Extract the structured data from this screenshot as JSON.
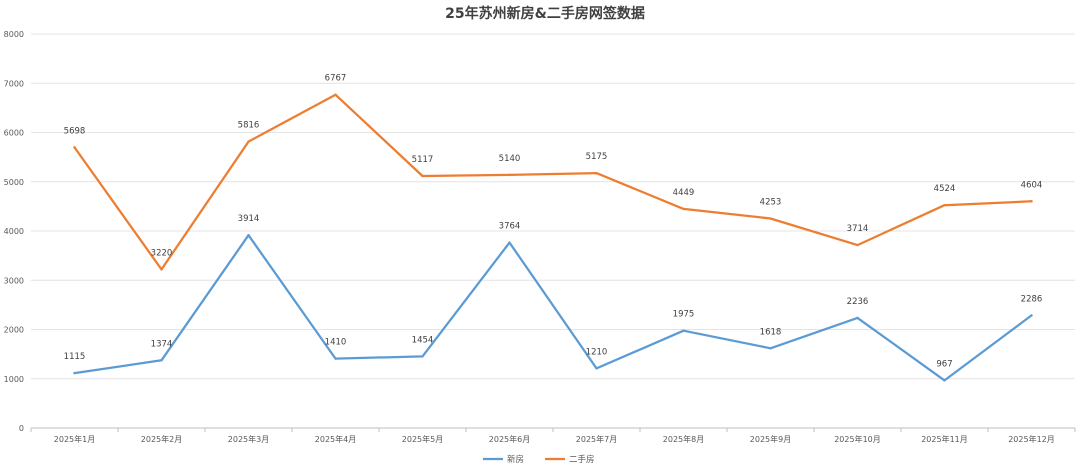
{
  "chart_data": {
    "type": "line",
    "title": "25年苏州新房&二手房网签数据",
    "xlabel": "",
    "ylabel": "",
    "categories": [
      "2025年1月",
      "2025年2月",
      "2025年3月",
      "2025年4月",
      "2025年5月",
      "2025年6月",
      "2025年7月",
      "2025年8月",
      "2025年9月",
      "2025年10月",
      "2025年11月",
      "2025年12月"
    ],
    "ylim": [
      0,
      8000
    ],
    "yticks": [
      0,
      1000,
      2000,
      3000,
      4000,
      5000,
      6000,
      7000,
      8000
    ],
    "grid": true,
    "legend_position": "bottom",
    "series": [
      {
        "name": "新房",
        "color": "#5B9BD5",
        "values": [
          1115,
          1374,
          3914,
          1410,
          1454,
          3764,
          1210,
          1975,
          1618,
          2236,
          967,
          2286
        ]
      },
      {
        "name": "二手房",
        "color": "#ED7D31",
        "values": [
          5698,
          3220,
          5816,
          6767,
          5117,
          5140,
          5175,
          4449,
          4253,
          3714,
          4524,
          4604
        ]
      }
    ]
  }
}
